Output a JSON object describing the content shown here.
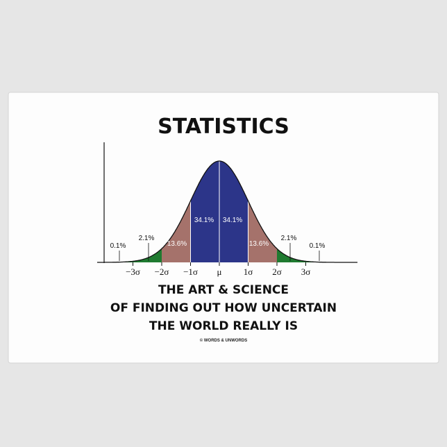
{
  "title": "STATISTICS",
  "axis_labels": [
    "−3σ",
    "−2σ",
    "−1σ",
    "μ",
    "1σ",
    "2σ",
    "3σ"
  ],
  "region_labels": [
    "0.1%",
    "2.1%",
    "13.6%",
    "34.1%",
    "34.1%",
    "13.6%",
    "2.1%",
    "0.1%"
  ],
  "tagline": [
    "THE ART & SCIENCE",
    "OF FINDING OUT HOW UNCERTAIN",
    "THE WORLD REALLY IS"
  ],
  "credit": "© WORDS & UNWORDS"
}
